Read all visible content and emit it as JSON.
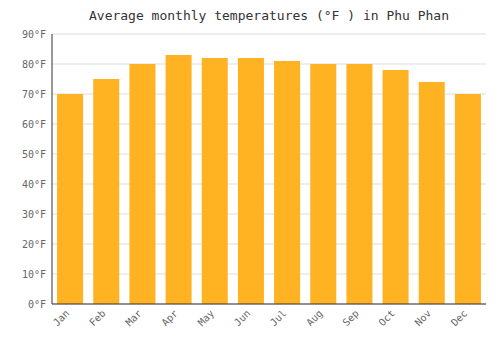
{
  "chart_data": {
    "type": "bar",
    "title": "Average monthly temperatures (°F ) in Phu Phan",
    "categories": [
      "Jan",
      "Feb",
      "Mar",
      "Apr",
      "May",
      "Jun",
      "Jul",
      "Aug",
      "Sep",
      "Oct",
      "Nov",
      "Dec"
    ],
    "values": [
      70,
      75,
      80,
      83,
      82,
      82,
      81,
      80,
      80,
      78,
      74,
      70
    ],
    "color": "#ffb322",
    "ylim": [
      0,
      90
    ],
    "yticks": [
      {
        "value": 0,
        "label": "0°F"
      },
      {
        "value": 10,
        "label": "10°F"
      },
      {
        "value": 20,
        "label": "20°F"
      },
      {
        "value": 30,
        "label": "30°F"
      },
      {
        "value": 40,
        "label": "40°F"
      },
      {
        "value": 50,
        "label": "50°F"
      },
      {
        "value": 60,
        "label": "60°F"
      },
      {
        "value": 70,
        "label": "70°F"
      },
      {
        "value": 80,
        "label": "80°F"
      },
      {
        "value": 90,
        "label": "90°F"
      }
    ],
    "grid": true
  }
}
